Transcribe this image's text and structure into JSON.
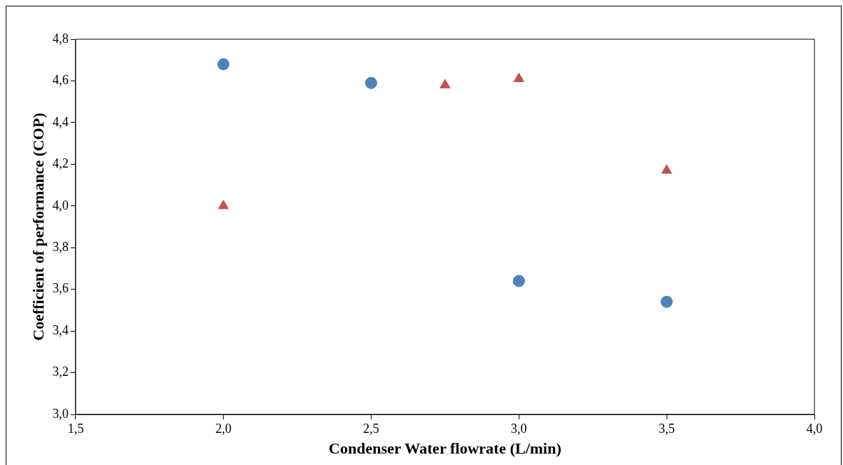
{
  "chart_data": {
    "type": "scatter",
    "xlabel": "Condenser Water flowrate (L/min)",
    "ylabel": "Coefficient of performance (COP)",
    "xlim": [
      1.5,
      4.0
    ],
    "xticks": [
      {
        "value": 1.5,
        "label": "1,5"
      },
      {
        "value": 2.0,
        "label": "2,0"
      },
      {
        "value": 2.5,
        "label": "2,5"
      },
      {
        "value": 3.0,
        "label": "3,0"
      },
      {
        "value": 3.5,
        "label": "3,5"
      },
      {
        "value": 4.0,
        "label": "4,0"
      }
    ],
    "ylim": [
      3.0,
      4.8
    ],
    "yticks": [
      {
        "value": 3.0,
        "label": "3,0"
      },
      {
        "value": 3.2,
        "label": "3,2"
      },
      {
        "value": 3.4,
        "label": "3,4"
      },
      {
        "value": 3.6,
        "label": "3,6"
      },
      {
        "value": 3.8,
        "label": "3,8"
      },
      {
        "value": 4.0,
        "label": "4,0"
      },
      {
        "value": 4.2,
        "label": "4,2"
      },
      {
        "value": 4.4,
        "label": "4,4"
      },
      {
        "value": 4.6,
        "label": "4,6"
      },
      {
        "value": 4.8,
        "label": "4,8"
      }
    ],
    "grid": false,
    "legend": false,
    "series": [
      {
        "color": "#4f81bd",
        "marker": "circle",
        "x": [
          2.0,
          2.5,
          3.0,
          3.5
        ],
        "values": [
          4.68,
          4.59,
          3.64,
          3.54
        ]
      },
      {
        "color": "#c0504d",
        "marker": "triangle",
        "x": [
          2.0,
          2.75,
          3.0,
          3.5
        ],
        "values": [
          4.0,
          4.58,
          4.61,
          4.17
        ]
      }
    ]
  }
}
